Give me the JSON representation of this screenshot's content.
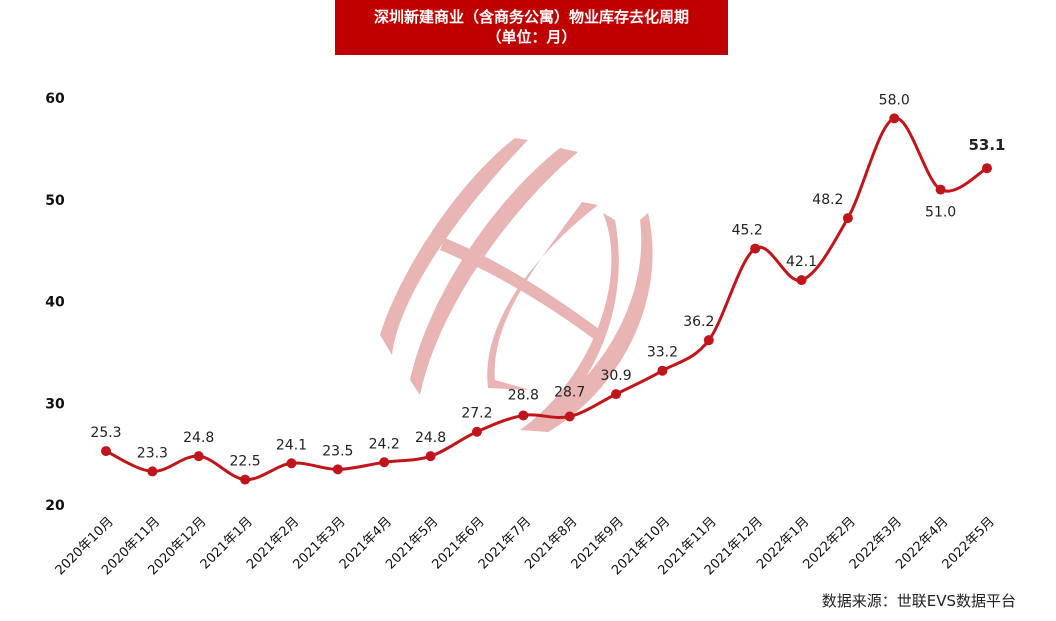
{
  "title": {
    "line1": "深圳新建商业（含商务公寓）物业库存去化周期",
    "line2": "（单位：月）",
    "background": "#C00000"
  },
  "source": "数据来源：世联EVS数据平台",
  "watermark": {
    "icon": "company-logo-watermark",
    "color": "#E8B4B4"
  },
  "chart_data": {
    "type": "line",
    "title": "深圳新建商业（含商务公寓）物业库存去化周期（单位：月）",
    "xlabel": "",
    "ylabel": "",
    "ylim": [
      20,
      60
    ],
    "yticks": [
      20,
      30,
      40,
      50,
      60
    ],
    "grid": false,
    "legend": null,
    "line_color": "#C0161B",
    "smooth": true,
    "categories": [
      "2020年10月",
      "2020年11月",
      "2020年12月",
      "2021年1月",
      "2021年2月",
      "2021年3月",
      "2021年4月",
      "2021年5月",
      "2021年6月",
      "2021年7月",
      "2021年8月",
      "2021年9月",
      "2021年10月",
      "2021年11月",
      "2021年12月",
      "2022年1月",
      "2022年2月",
      "2022年3月",
      "2022年4月",
      "2022年5月"
    ],
    "series": [
      {
        "name": "去化周期",
        "values": [
          25.3,
          23.3,
          24.8,
          22.5,
          24.1,
          23.5,
          24.2,
          24.8,
          27.2,
          28.8,
          28.7,
          30.9,
          33.2,
          36.2,
          45.2,
          42.1,
          48.2,
          58.0,
          51.0,
          53.1
        ],
        "labels": [
          "25.3",
          "23.3",
          "24.8",
          "22.5",
          "24.1",
          "23.5",
          "24.2",
          "24.8",
          "27.2",
          "28.8",
          "28.7",
          "30.9",
          "33.2",
          "36.2",
          "45.2",
          "42.1",
          "48.2",
          "58.0",
          "51.0",
          "53.1"
        ]
      }
    ]
  }
}
